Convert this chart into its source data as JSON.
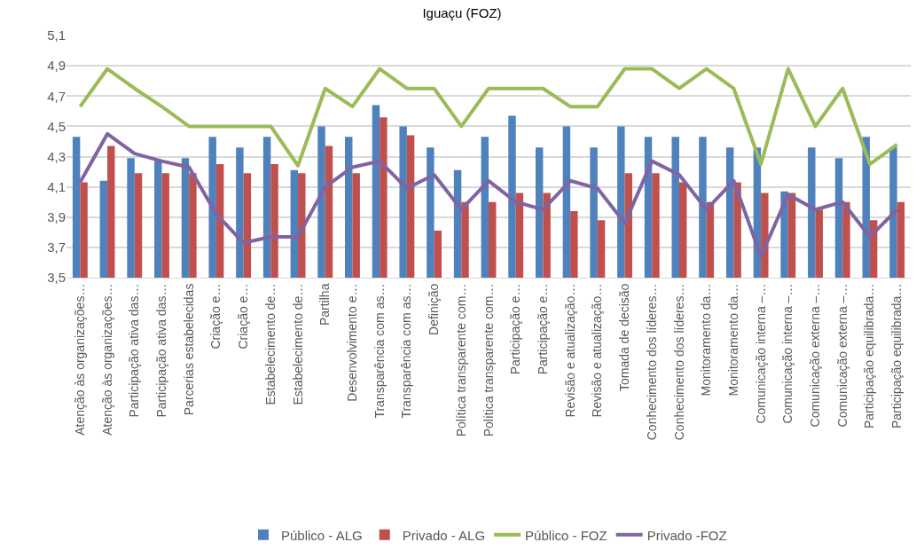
{
  "chart_data": {
    "type": "bar",
    "title": "Iguaçu (FOZ)",
    "categories": [
      "Atenção às organizações…",
      "Atenção às organizações…",
      "Participação ativa das…",
      "Participação ativa das…",
      "Parcerias estabelecidas",
      "Criação e…",
      "Criação e…",
      "Estabelecimento de…",
      "Estabelecimento de…",
      "Partilha",
      "Desenvolvimento e…",
      "Transparência com as…",
      "Transparência com as…",
      "Definição",
      "Política transparente com…",
      "Política transparente com…",
      "Participação e…",
      "Participação e…",
      "Revisão e atualização…",
      "Revisão e atualização…",
      "Tomada de decisão",
      "Conhecimento dos líderes…",
      "Conhecimento dos líderes…",
      "Monitoramento da…",
      "Monitoramento da…",
      "Comunicação interna –…",
      "Comunicação interna –…",
      "Comunicação externa –…",
      "Comunicação externa –…",
      "Participação equilibrada…",
      "Participação equilibrada…"
    ],
    "series": [
      {
        "name": "Público - ALG",
        "color": "#4f81bd",
        "values": [
          4.43,
          4.14,
          4.29,
          4.27,
          4.29,
          4.43,
          4.36,
          4.43,
          4.21,
          4.5,
          4.43,
          4.64,
          4.5,
          4.36,
          4.21,
          4.43,
          4.57,
          4.36,
          4.5,
          4.36,
          4.5,
          4.43,
          4.43,
          4.43,
          4.36,
          4.36,
          4.07,
          4.36,
          4.29,
          4.43,
          4.36
        ]
      },
      {
        "name": "Privado - ALG",
        "color": "#c0504d",
        "values": [
          4.13,
          4.37,
          4.19,
          4.19,
          4.19,
          4.25,
          4.19,
          4.25,
          4.19,
          4.37,
          4.19,
          4.56,
          4.44,
          3.81,
          4.0,
          4.0,
          4.06,
          4.06,
          3.94,
          3.88,
          4.19,
          4.19,
          4.13,
          4.0,
          4.13,
          4.06,
          4.06,
          3.95,
          4.0,
          3.88,
          4.0
        ]
      },
      {
        "name": "Público - FOZ",
        "type": "line",
        "color": "#9bbb59",
        "values": [
          4.63,
          4.88,
          4.75,
          4.63,
          4.5,
          4.5,
          4.5,
          4.5,
          4.24,
          4.75,
          4.63,
          4.88,
          4.75,
          4.75,
          4.5,
          4.75,
          4.75,
          4.75,
          4.63,
          4.63,
          4.88,
          4.88,
          4.75,
          4.88,
          4.75,
          4.25,
          4.88,
          4.5,
          4.75,
          4.25,
          4.38
        ]
      },
      {
        "name": "Privado -FOZ",
        "type": "line",
        "color": "#8064a2",
        "values": [
          4.13,
          4.45,
          4.32,
          4.27,
          4.23,
          3.92,
          3.73,
          3.77,
          3.77,
          4.1,
          4.23,
          4.27,
          4.09,
          4.18,
          3.95,
          4.14,
          4.0,
          3.95,
          4.14,
          4.09,
          3.86,
          4.27,
          4.18,
          3.95,
          4.14,
          3.64,
          4.05,
          3.95,
          4.0,
          3.77,
          3.95
        ]
      }
    ],
    "ylim": [
      3.5,
      5.1
    ],
    "yticks": [
      {
        "value": 3.5,
        "label": "3,5"
      },
      {
        "value": 3.7,
        "label": "3,7"
      },
      {
        "value": 3.9,
        "label": "3,9"
      },
      {
        "value": 4.1,
        "label": "4,1"
      },
      {
        "value": 4.3,
        "label": "4,3"
      },
      {
        "value": 4.5,
        "label": "4,5"
      },
      {
        "value": 4.7,
        "label": "4,7"
      },
      {
        "value": 4.9,
        "label": "4,9"
      },
      {
        "value": 5.1,
        "label": "5,1"
      }
    ],
    "grid": "y",
    "legend": "bottom",
    "marker": "none",
    "line_style": "solid"
  }
}
